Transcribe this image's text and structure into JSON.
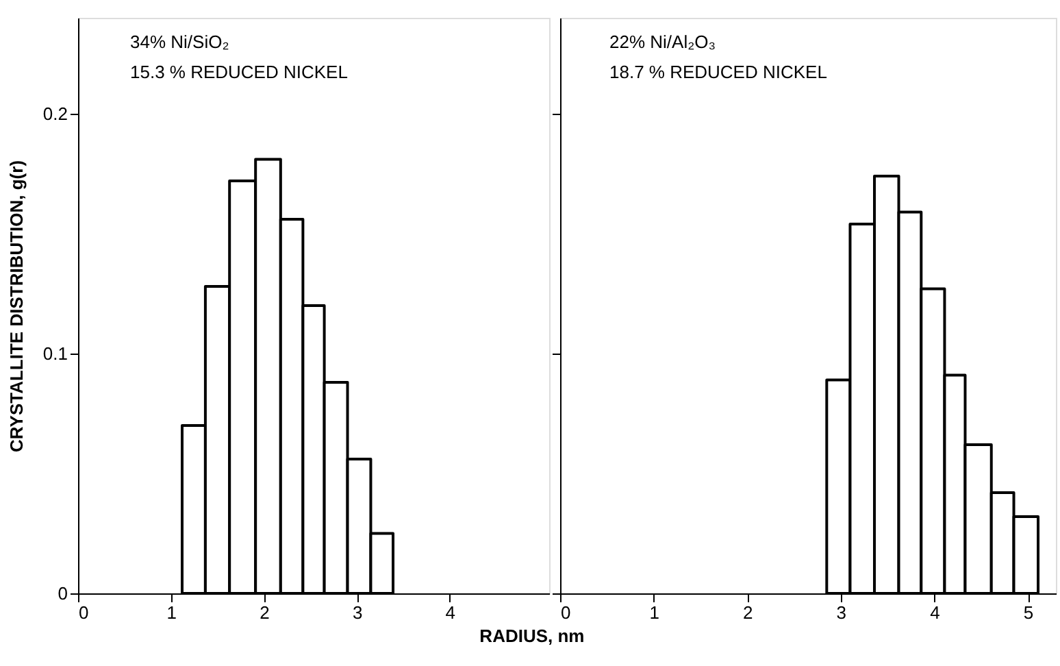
{
  "chart_data": [
    {
      "type": "histogram",
      "xlabel": "RADIUS, nm",
      "ylabel": "CRYSTALLITE  DISTRIBUTION, g(r)",
      "annotations": [
        "34% Ni/SiO₂",
        "15.3 % REDUCED NICKEL"
      ],
      "bins": [
        1.12,
        1.37,
        1.63,
        1.91,
        2.18,
        2.42,
        2.65,
        2.9,
        3.15,
        3.39
      ],
      "values": [
        0.07,
        0.128,
        0.172,
        0.181,
        0.156,
        0.12,
        0.088,
        0.056,
        0.025
      ],
      "color": "#000000",
      "xlim": [
        0,
        5.07
      ],
      "xticks": [
        0,
        1,
        2,
        3,
        4
      ],
      "ylim": [
        0,
        0.24
      ],
      "yticks": [
        0,
        0.1,
        0.2
      ],
      "grid": false
    },
    {
      "type": "histogram",
      "annotations": [
        "22% Ni/Al₂O₃",
        "18.7 % REDUCED NICKEL"
      ],
      "tick_labels": "x",
      "bins": [
        2.85,
        3.1,
        3.36,
        3.62,
        3.86,
        4.11,
        4.33,
        4.61,
        4.85,
        5.11
      ],
      "values": [
        0.089,
        0.154,
        0.174,
        0.159,
        0.127,
        0.091,
        0.062,
        0.042,
        0.032
      ],
      "color": "#000000",
      "xlim": [
        0,
        5.3
      ],
      "xticks": [
        0,
        1,
        2,
        3,
        4,
        5
      ],
      "ylim": [
        0,
        0.24
      ],
      "yticks": [
        0,
        0.1,
        0.2
      ],
      "grid": false
    }
  ]
}
